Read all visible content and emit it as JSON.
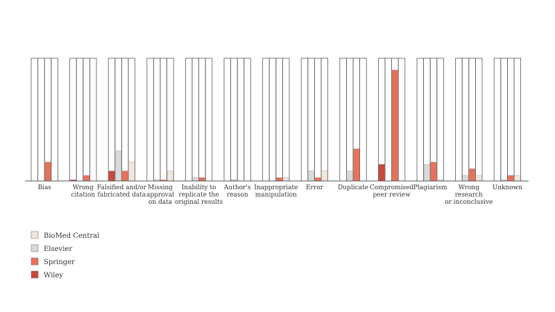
{
  "chart_data": {
    "type": "bar",
    "categories": [
      [
        "Bias"
      ],
      [
        "Wrong",
        "citation"
      ],
      [
        "Falsified and/or",
        "fabricated data"
      ],
      [
        "Missing",
        "approval",
        "on data"
      ],
      [
        "Inability to",
        "replicate the",
        "original results"
      ],
      [
        "Author's",
        "reason"
      ],
      [
        "Inappropriate",
        "manipulation"
      ],
      [
        "Error"
      ],
      [
        "Duplicate"
      ],
      [
        "Compromised",
        "peer review"
      ],
      [
        "Plagiarism"
      ],
      [
        "Wrong",
        "research",
        "or inconclusive"
      ],
      [
        "Unknown"
      ]
    ],
    "series": [
      {
        "name": "Wiley",
        "color": "#c9493a",
        "values": [
          0,
          1,
          9,
          0,
          0,
          0,
          0,
          0,
          0,
          15,
          0,
          0,
          0
        ]
      },
      {
        "name": "Elsevier",
        "color": "#d9d9d9",
        "values": [
          0,
          0,
          27,
          1,
          3,
          1,
          0,
          9,
          9,
          0,
          15,
          5,
          1
        ]
      },
      {
        "name": "Springer",
        "color": "#e8715a",
        "values": [
          17,
          5,
          9,
          1,
          3,
          0,
          3,
          3,
          29,
          100,
          17,
          11,
          5
        ]
      },
      {
        "name": "BioMed Central",
        "color": "#efe6dc",
        "values": [
          0,
          0,
          17,
          9,
          0,
          0,
          3,
          9,
          0,
          0,
          1,
          5,
          5
        ]
      }
    ],
    "legend_order": [
      "BioMed Central",
      "Elsevier",
      "Springer",
      "Wiley"
    ],
    "ylim": [
      0,
      115
    ],
    "grid": false,
    "legend": "bottom-left"
  }
}
